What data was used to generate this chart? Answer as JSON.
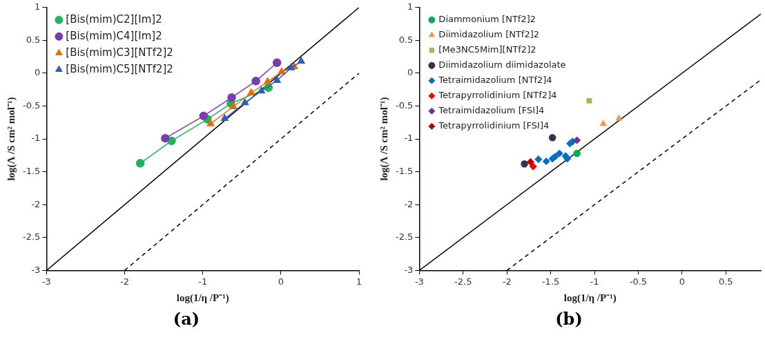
{
  "chart_data": [
    {
      "type": "scatter",
      "xlabel": "log(1/η /P⁻¹)",
      "ylabel": "log(Λ /S cm² mol⁻¹)",
      "xlim": [
        -3,
        1
      ],
      "ylim": [
        -3,
        1
      ],
      "xticks": [
        -3,
        -2,
        -1,
        0,
        1
      ],
      "yticks": [
        -3,
        -2.5,
        -2,
        -1.5,
        -1,
        -0.5,
        0,
        0.5,
        1
      ],
      "grid": false,
      "legend": "top left",
      "annotations": [
        "(a)"
      ],
      "series": [
        {
          "name": "[Bis(mim)C2][Im]2",
          "color": "#22b35a",
          "type": "line",
          "marker": "circle",
          "x": [
            -1.8,
            -1.4,
            -0.94,
            -0.64,
            -0.16
          ],
          "values": [
            -1.37,
            -1.03,
            -0.7,
            -0.46,
            -0.22
          ]
        },
        {
          "name": "[Bis(mim)C4][Im]2",
          "color": "#7a3db0",
          "type": "line",
          "marker": "circle",
          "x": [
            -1.48,
            -0.99,
            -0.63,
            -0.32,
            -0.05
          ],
          "values": [
            -0.99,
            -0.65,
            -0.37,
            -0.12,
            0.16
          ]
        },
        {
          "name": "[Bis(mim)C3][NTf2]2",
          "color": "#e46c0a",
          "type": "line",
          "marker": "triangle",
          "x": [
            -0.9,
            -0.61,
            -0.38,
            -0.17,
            0.01,
            0.17
          ],
          "values": [
            -0.77,
            -0.51,
            -0.3,
            -0.13,
            0.02,
            0.1
          ]
        },
        {
          "name": "[Bis(mim)C5][NTf2]2",
          "color": "#2e5fbf",
          "type": "line",
          "marker": "triangle",
          "x": [
            -0.72,
            -0.46,
            -0.25,
            -0.05,
            0.13,
            0.26
          ],
          "values": [
            -0.69,
            -0.45,
            -0.27,
            -0.11,
            0.08,
            0.18
          ]
        },
        {
          "color": "#000000",
          "type": "line",
          "marker": "none",
          "line_style": "solid",
          "x": [
            -3,
            1
          ],
          "values": [
            -3,
            1
          ]
        },
        {
          "color": "#000000",
          "type": "line",
          "marker": "none",
          "line_style": "dashed",
          "x": [
            -2,
            1
          ],
          "values": [
            -3,
            0
          ]
        }
      ]
    },
    {
      "type": "scatter",
      "xlabel": "log(1/η /P⁻¹)",
      "ylabel": "log(Λ /S cm² mol⁻¹)",
      "xlim": [
        -3,
        0.9
      ],
      "ylim": [
        -3,
        1
      ],
      "xticks": [
        -3,
        -2.5,
        -2,
        -1.5,
        -1,
        -0.5,
        0,
        0.5
      ],
      "yticks": [
        -3,
        -2.5,
        -2,
        -1.5,
        -1,
        -0.5,
        0,
        0.5,
        1
      ],
      "grid": false,
      "legend": "top left",
      "annotations": [
        "(b)"
      ],
      "series": [
        {
          "name": "Diammonium [NTf2]2",
          "color": "#00b050",
          "marker": "circle",
          "x": [
            -1.2
          ],
          "values": [
            -1.22
          ]
        },
        {
          "name": "Diimidazolium [NTf2]2",
          "color": "#f79646",
          "marker": "triangle",
          "x": [
            -0.9,
            -0.72
          ],
          "values": [
            -0.77,
            -0.69
          ]
        },
        {
          "name": "[Me3NC5Mim][NTf2]2",
          "color": "#9bbb59",
          "marker": "square",
          "x": [
            -1.06
          ],
          "values": [
            -0.42
          ]
        },
        {
          "name": "Diimidazolium diimidazolate",
          "color": "#3b3050",
          "marker": "circle",
          "x": [
            -1.48,
            -1.8
          ],
          "values": [
            -0.98,
            -1.38
          ]
        },
        {
          "name": "Tetraimidazolium [NTf2]4",
          "color": "#0070c0",
          "marker": "diamond",
          "x": [
            -1.64,
            -1.55,
            -1.48,
            -1.45,
            -1.4,
            -1.33,
            -1.31,
            -1.28,
            -1.25
          ],
          "values": [
            -1.31,
            -1.34,
            -1.3,
            -1.27,
            -1.22,
            -1.26,
            -1.3,
            -1.07,
            -1.04
          ]
        },
        {
          "name": "Tetrapyrrolidinium [NTf2]4",
          "color": "#ff0000",
          "marker": "diamond",
          "x": [
            -1.7
          ],
          "values": [
            -1.42
          ]
        },
        {
          "name": "Tetraimidazolium [FSI]4",
          "color": "#7030a0",
          "marker": "diamond",
          "x": [
            -1.2
          ],
          "values": [
            -1.02
          ]
        },
        {
          "name": "Tetrapyrrolidinium [FSI]4",
          "color": "#c00000",
          "marker": "diamond",
          "x": [
            -1.73
          ],
          "values": [
            -1.35
          ]
        },
        {
          "color": "#000000",
          "type": "line",
          "marker": "none",
          "line_style": "solid",
          "x": [
            -3,
            0.9
          ],
          "values": [
            -3,
            0.9
          ]
        },
        {
          "color": "#000000",
          "type": "line",
          "marker": "none",
          "line_style": "dashed",
          "x": [
            -2,
            0.9
          ],
          "values": [
            -3,
            -0.1
          ]
        }
      ]
    }
  ]
}
